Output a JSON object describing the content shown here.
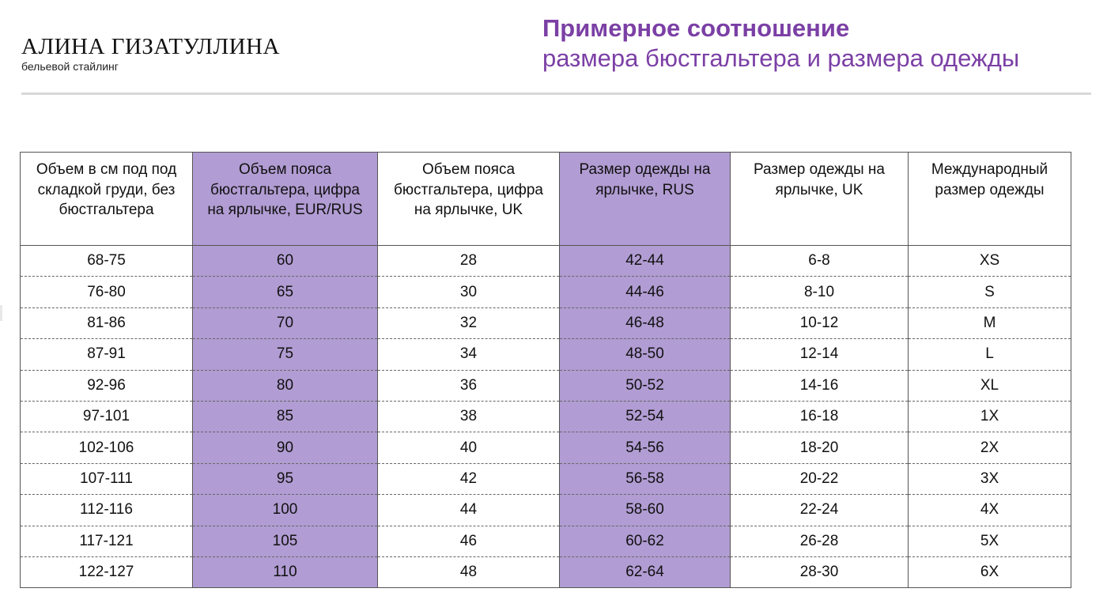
{
  "brand": {
    "name": "АЛИНА ГИЗАТУЛЛИНА",
    "subtitle": "бельевой стайлинг"
  },
  "header": {
    "title_bold": "Примерное соотношение",
    "title_regular": "размера бюстгальтера и размера одежды"
  },
  "colors": {
    "accent": "#7b3fa5",
    "highlight_column": "#b19cd3"
  },
  "table": {
    "columns": [
      "Объем в см под под складкой груди, без бюстгальтера",
      "Объем пояса бюстгальтера, цифра на ярлычке, EUR/RUS",
      "Объем пояса бюстгальтера, цифра на ярлычке, UK",
      "Размер одежды на ярлычке, RUS",
      "Размер одежды на ярлычке, UK",
      "Международный размер одежды"
    ],
    "rows": [
      [
        "68-75",
        "60",
        "28",
        "42-44",
        "6-8",
        "XS"
      ],
      [
        "76-80",
        "65",
        "30",
        "44-46",
        "8-10",
        "S"
      ],
      [
        "81-86",
        "70",
        "32",
        "46-48",
        "10-12",
        "M"
      ],
      [
        "87-91",
        "75",
        "34",
        "48-50",
        "12-14",
        "L"
      ],
      [
        "92-96",
        "80",
        "36",
        "50-52",
        "14-16",
        "XL"
      ],
      [
        "97-101",
        "85",
        "38",
        "52-54",
        "16-18",
        "1X"
      ],
      [
        "102-106",
        "90",
        "40",
        "54-56",
        "18-20",
        "2X"
      ],
      [
        "107-111",
        "95",
        "42",
        "56-58",
        "20-22",
        "3X"
      ],
      [
        "112-116",
        "100",
        "44",
        "58-60",
        "22-24",
        "4X"
      ],
      [
        "117-121",
        "105",
        "46",
        "60-62",
        "26-28",
        "5X"
      ],
      [
        "122-127",
        "110",
        "48",
        "62-64",
        "28-30",
        "6X"
      ]
    ]
  }
}
